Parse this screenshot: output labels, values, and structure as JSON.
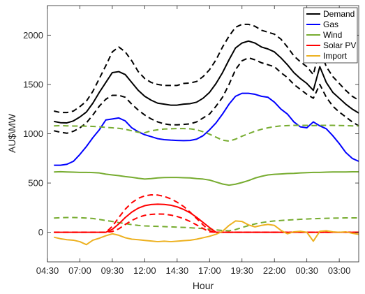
{
  "chart_data": {
    "type": "line",
    "title": "",
    "xlabel": "Hour",
    "ylabel": "AU$\\MW",
    "ylim": [
      -300,
      2300
    ],
    "yticks": [
      0,
      500,
      1000,
      1500,
      2000
    ],
    "xlim": [
      0,
      48
    ],
    "xticks": [
      0,
      5,
      10,
      15,
      20,
      25,
      30,
      35,
      40,
      45
    ],
    "xtick_labels": [
      "04:30",
      "07:00",
      "09:30",
      "12:00",
      "14:30",
      "17:00",
      "19:30",
      "22:00",
      "00:30",
      "03:00"
    ],
    "legend_position": "top-right",
    "grid": false,
    "series": [
      {
        "name": "Demand",
        "color": "#000000",
        "style": "solid",
        "values": [
          1125,
          1112,
          1110,
          1130,
          1170,
          1220,
          1310,
          1420,
          1520,
          1620,
          1630,
          1600,
          1520,
          1440,
          1380,
          1340,
          1310,
          1300,
          1290,
          1290,
          1300,
          1305,
          1320,
          1360,
          1420,
          1510,
          1620,
          1750,
          1870,
          1920,
          1940,
          1920,
          1880,
          1860,
          1830,
          1770,
          1700,
          1620,
          1560,
          1510,
          1440,
          1680,
          1520,
          1420,
          1360,
          1300,
          1250,
          1210
        ]
      },
      {
        "name": "Demand upper bound",
        "legend": false,
        "color": "#000000",
        "style": "dashed",
        "values": [
          1230,
          1215,
          1215,
          1230,
          1275,
          1330,
          1430,
          1560,
          1690,
          1830,
          1880,
          1830,
          1740,
          1630,
          1560,
          1520,
          1500,
          1490,
          1490,
          1490,
          1510,
          1515,
          1530,
          1580,
          1650,
          1750,
          1880,
          1990,
          2080,
          2110,
          2110,
          2090,
          2050,
          2030,
          2010,
          1960,
          1880,
          1790,
          1730,
          1680,
          1600,
          1860,
          1680,
          1580,
          1510,
          1440,
          1380,
          1340
        ]
      },
      {
        "name": "Demand lower bound",
        "legend": false,
        "color": "#000000",
        "style": "dashed",
        "values": [
          1030,
          1015,
          1005,
          1025,
          1060,
          1110,
          1190,
          1280,
          1350,
          1390,
          1390,
          1370,
          1300,
          1240,
          1190,
          1150,
          1120,
          1100,
          1090,
          1090,
          1095,
          1100,
          1120,
          1160,
          1200,
          1280,
          1370,
          1500,
          1650,
          1740,
          1770,
          1750,
          1720,
          1700,
          1680,
          1620,
          1570,
          1500,
          1450,
          1400,
          1360,
          1500,
          1370,
          1280,
          1220,
          1170,
          1120,
          1080
        ]
      },
      {
        "name": "Gas",
        "color": "#0000ff",
        "style": "solid",
        "values": [
          680,
          680,
          690,
          720,
          790,
          870,
          960,
          1040,
          1140,
          1150,
          1160,
          1130,
          1060,
          1020,
          990,
          970,
          950,
          940,
          935,
          932,
          930,
          932,
          945,
          980,
          1040,
          1110,
          1200,
          1300,
          1380,
          1410,
          1410,
          1400,
          1380,
          1370,
          1320,
          1250,
          1200,
          1120,
          1070,
          1060,
          1120,
          1080,
          1050,
          980,
          900,
          810,
          750,
          720
        ]
      },
      {
        "name": "Wind",
        "color": "#77ac30",
        "style": "solid",
        "values": [
          612,
          615,
          612,
          610,
          608,
          608,
          606,
          602,
          590,
          582,
          575,
          565,
          558,
          548,
          540,
          545,
          552,
          555,
          556,
          556,
          554,
          552,
          545,
          540,
          530,
          510,
          490,
          478,
          488,
          505,
          525,
          550,
          568,
          582,
          588,
          592,
          596,
          598,
          602,
          605,
          608,
          608,
          610,
          612,
          612,
          612,
          614,
          614
        ]
      },
      {
        "name": "Wind upper bound",
        "legend": false,
        "color": "#77ac30",
        "style": "dashed",
        "values": [
          1080,
          1082,
          1080,
          1078,
          1078,
          1076,
          1074,
          1070,
          1065,
          1060,
          1055,
          1045,
          1030,
          1015,
          1010,
          1030,
          1040,
          1048,
          1050,
          1052,
          1052,
          1050,
          1040,
          1020,
          995,
          965,
          935,
          925,
          945,
          975,
          1000,
          1025,
          1045,
          1060,
          1072,
          1080,
          1082,
          1085,
          1085,
          1085,
          1082,
          1085,
          1085,
          1085,
          1083,
          1082,
          1080,
          1080
        ]
      },
      {
        "name": "Wind lower bound",
        "legend": false,
        "color": "#77ac30",
        "style": "dashed",
        "values": [
          145,
          148,
          150,
          150,
          148,
          145,
          140,
          130,
          120,
          110,
          98,
          88,
          78,
          70,
          65,
          62,
          60,
          58,
          55,
          52,
          50,
          46,
          42,
          38,
          32,
          25,
          18,
          15,
          28,
          48,
          68,
          85,
          98,
          108,
          115,
          120,
          124,
          128,
          132,
          135,
          138,
          140,
          142,
          144,
          145,
          146,
          146,
          146
        ]
      },
      {
        "name": "Solar PV",
        "color": "#ff0000",
        "style": "solid",
        "values": [
          0,
          0,
          0,
          0,
          0,
          0,
          0,
          0,
          0,
          30,
          85,
          150,
          205,
          245,
          270,
          282,
          285,
          283,
          275,
          258,
          232,
          198,
          152,
          100,
          48,
          0,
          0,
          0,
          0,
          0,
          0,
          0,
          0,
          0,
          0,
          0,
          0,
          0,
          0,
          0,
          0,
          0,
          0,
          0,
          0,
          0,
          0,
          0
        ]
      },
      {
        "name": "Solar PV upper bound",
        "legend": false,
        "color": "#ff0000",
        "style": "dashed",
        "values": [
          0,
          0,
          0,
          0,
          0,
          0,
          0,
          0,
          0,
          60,
          150,
          235,
          300,
          345,
          370,
          380,
          378,
          365,
          340,
          305,
          262,
          205,
          140,
          75,
          15,
          0,
          0,
          0,
          0,
          0,
          0,
          0,
          0,
          0,
          0,
          0,
          0,
          0,
          0,
          0,
          0,
          0,
          0,
          0,
          0,
          0,
          0,
          0
        ]
      },
      {
        "name": "Solar PV lower bound",
        "legend": false,
        "color": "#ff0000",
        "style": "dashed",
        "values": [
          0,
          0,
          0,
          0,
          0,
          0,
          0,
          0,
          0,
          8,
          35,
          80,
          120,
          152,
          172,
          182,
          186,
          184,
          175,
          160,
          138,
          110,
          75,
          38,
          5,
          0,
          0,
          0,
          0,
          0,
          0,
          0,
          0,
          0,
          0,
          0,
          0,
          0,
          0,
          0,
          0,
          0,
          0,
          0,
          0,
          0,
          0,
          0
        ]
      },
      {
        "name": "Import",
        "color": "#edb120",
        "style": "solid",
        "values": [
          -50,
          -65,
          -75,
          -80,
          -95,
          -125,
          -80,
          -60,
          -35,
          -15,
          -30,
          -55,
          -70,
          -75,
          -82,
          -88,
          -95,
          -90,
          -95,
          -90,
          -85,
          -80,
          -70,
          -55,
          -40,
          -20,
          10,
          70,
          115,
          110,
          75,
          55,
          70,
          80,
          70,
          20,
          -15,
          5,
          10,
          0,
          -90,
          10,
          15,
          5,
          0,
          5,
          -10,
          -20
        ]
      }
    ]
  }
}
